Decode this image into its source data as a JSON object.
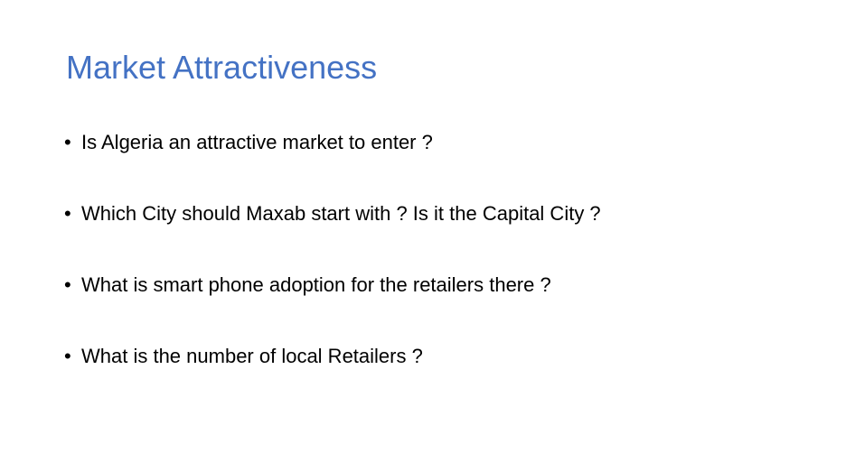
{
  "slide": {
    "title": "Market Attractiveness",
    "bullet_symbol": "•",
    "bullets": [
      "Is Algeria an attractive market to enter ?",
      "Which City should Maxab start with ? Is it the Capital City ?",
      "What is smart phone adoption for the retailers there ?",
      "What is the number of local Retailers ?"
    ]
  },
  "colors": {
    "title": "#4472c4",
    "text": "#000000",
    "background": "#ffffff"
  }
}
